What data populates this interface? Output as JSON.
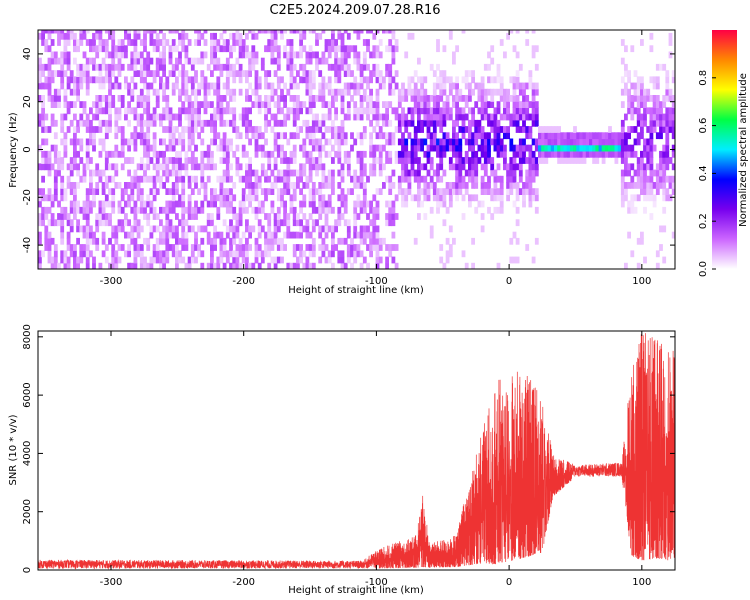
{
  "title": "C2E5.2024.209.07.28.R16",
  "chart_data": [
    {
      "type": "heatmap",
      "xlabel": "Height of straight line (km)",
      "ylabel": "Frequency (Hz)",
      "xlim": [
        -355,
        125
      ],
      "ylim": [
        -50,
        50
      ],
      "xticks": [
        -300,
        -200,
        -100,
        0,
        100
      ],
      "yticks": [
        -40,
        -20,
        0,
        20,
        40
      ],
      "colorbar": {
        "label": "Normalized spectral amplitude",
        "range": [
          0,
          1
        ],
        "ticks": [
          "0.0",
          "0.2",
          "0.4",
          "0.6",
          "0.8"
        ],
        "colors": [
          "#ffffff",
          "#cc66ff",
          "#7700ee",
          "#0000ff",
          "#00eeff",
          "#00ff44",
          "#ffff00",
          "#ff8800",
          "#ff0044"
        ]
      },
      "regions": [
        {
          "x": [
            -355,
            -85
          ],
          "description": "broadband noise",
          "amplitude": 0.1
        },
        {
          "x": [
            -85,
            20
          ],
          "description": "noisy signal near 0 Hz",
          "amplitude": 0.25
        },
        {
          "x": [
            20,
            83
          ],
          "description": "steady tone at ~0 Hz",
          "amplitude": 0.5
        },
        {
          "x": [
            83,
            125
          ],
          "description": "noisy signal near 0 Hz",
          "amplitude": 0.2
        }
      ]
    },
    {
      "type": "line",
      "xlabel": "Height of straight line (km)",
      "ylabel": "SNR (10 * v/v)",
      "xlim": [
        -355,
        125
      ],
      "ylim": [
        0,
        8200
      ],
      "xticks": [
        -300,
        -200,
        -100,
        0,
        100
      ],
      "yticks": [
        0,
        2000,
        4000,
        6000,
        8000
      ],
      "color": "#ee3333",
      "envelope": [
        {
          "x": -355,
          "low": 50,
          "high": 350
        },
        {
          "x": -110,
          "low": 50,
          "high": 320
        },
        {
          "x": -100,
          "low": 50,
          "high": 700
        },
        {
          "x": -70,
          "low": 80,
          "high": 1200
        },
        {
          "x": -65,
          "low": 100,
          "high": 2700
        },
        {
          "x": -60,
          "low": 80,
          "high": 900
        },
        {
          "x": -40,
          "low": 100,
          "high": 1200
        },
        {
          "x": -25,
          "low": 200,
          "high": 4000
        },
        {
          "x": -10,
          "low": 200,
          "high": 6500
        },
        {
          "x": 10,
          "low": 400,
          "high": 7000
        },
        {
          "x": 25,
          "low": 600,
          "high": 6000
        },
        {
          "x": 33,
          "low": 2500,
          "high": 4000
        },
        {
          "x": 50,
          "low": 3200,
          "high": 3600
        },
        {
          "x": 85,
          "low": 3200,
          "high": 3700
        },
        {
          "x": 92,
          "low": 500,
          "high": 7000
        },
        {
          "x": 100,
          "low": 300,
          "high": 8200
        },
        {
          "x": 110,
          "low": 400,
          "high": 8000
        },
        {
          "x": 125,
          "low": 300,
          "high": 7500
        }
      ]
    }
  ]
}
